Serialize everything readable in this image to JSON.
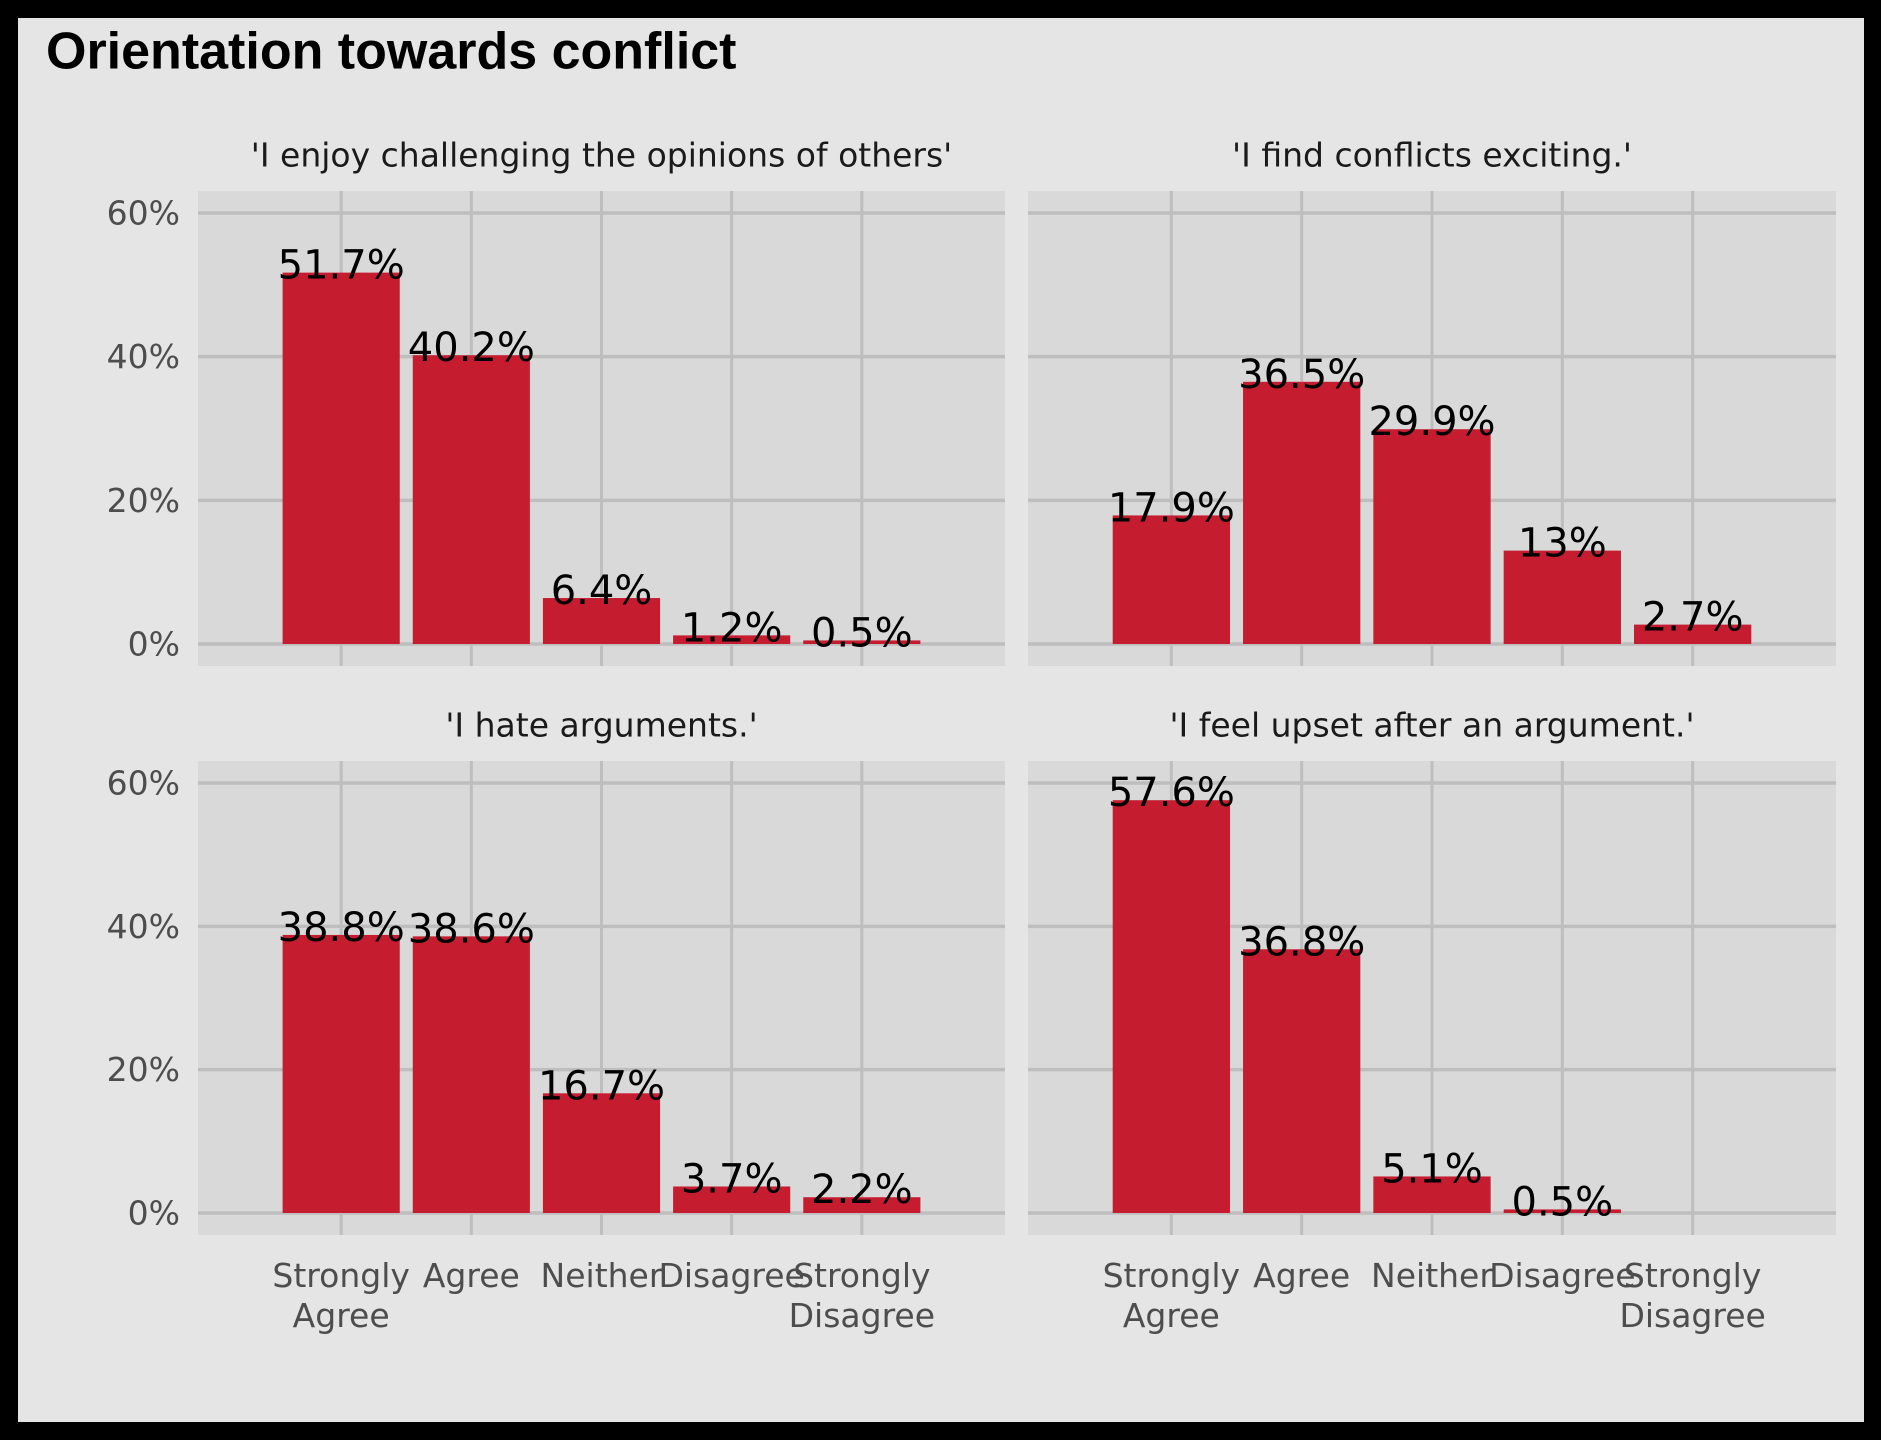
{
  "chart_data": {
    "type": "bar",
    "title": "Orientation towards conflict",
    "xlabel": "",
    "ylabel": "",
    "ylim": [
      0,
      60
    ],
    "yticks": [
      0,
      20,
      40,
      60
    ],
    "ytick_labels": [
      "0%",
      "20%",
      "40%",
      "60%"
    ],
    "grid": true,
    "bar_color": "#c51d2f",
    "categories": [
      "Strongly Agree",
      "Agree",
      "Neither",
      "Disagree",
      "Strongly Disagree"
    ],
    "category_labels": [
      [
        "Strongly",
        "Agree"
      ],
      [
        "Agree"
      ],
      [
        "Neither"
      ],
      [
        "Disagree"
      ],
      [
        "Strongly",
        "Disagree"
      ]
    ],
    "facets": [
      {
        "title": "'I enjoy challenging the opinions of others'",
        "values": [
          51.7,
          40.2,
          6.4,
          1.2,
          0.5
        ],
        "labels": [
          "51.7%",
          "40.2%",
          "6.4%",
          "1.2%",
          "0.5%"
        ]
      },
      {
        "title": "'I find conflicts exciting.'",
        "values": [
          17.9,
          36.5,
          29.9,
          13,
          2.7
        ],
        "labels": [
          "17.9%",
          "36.5%",
          "29.9%",
          "13%",
          "2.7%"
        ]
      },
      {
        "title": "'I hate arguments.'",
        "values": [
          38.8,
          38.6,
          16.7,
          3.7,
          2.2
        ],
        "labels": [
          "38.8%",
          "38.6%",
          "16.7%",
          "3.7%",
          "2.2%"
        ]
      },
      {
        "title": "'I feel upset after an argument.'",
        "values": [
          57.6,
          36.8,
          5.1,
          0.5,
          null
        ],
        "labels": [
          "57.6%",
          "36.8%",
          "5.1%",
          "0.5%",
          null
        ]
      }
    ]
  }
}
